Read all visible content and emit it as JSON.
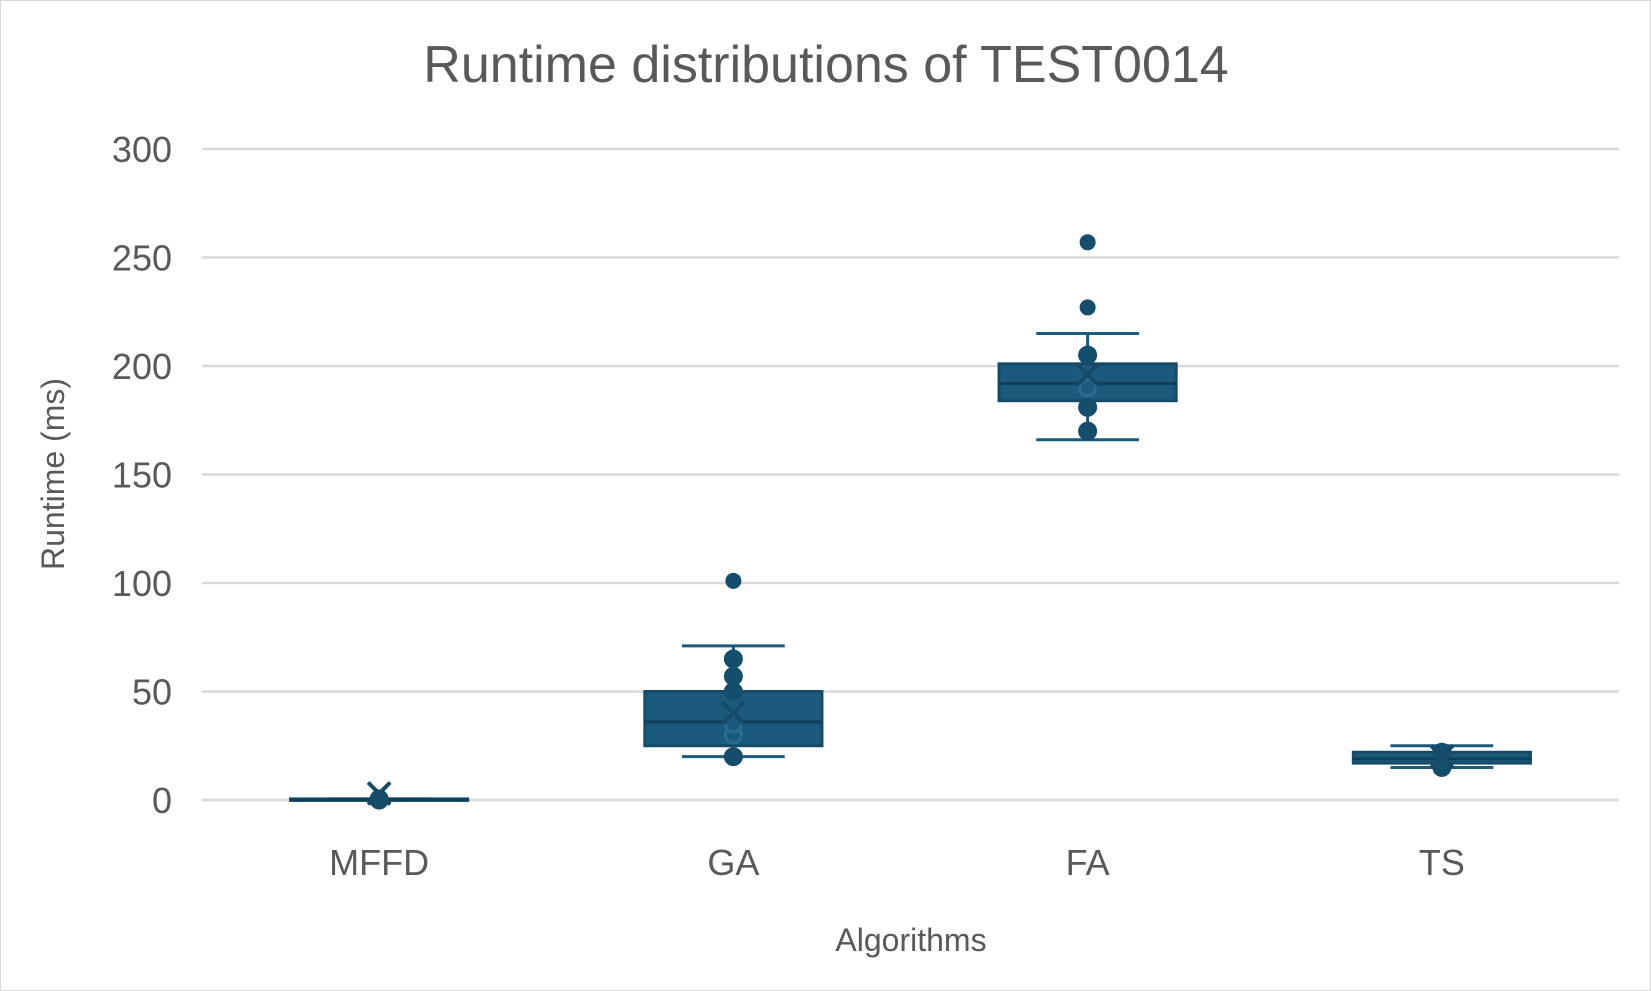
{
  "chart_data": {
    "type": "box",
    "title": "Runtime distributions of TEST0014",
    "xlabel": "Algorithms",
    "ylabel": "Runtime (ms)",
    "ylim": [
      0,
      300
    ],
    "yticks": [
      0,
      50,
      100,
      150,
      200,
      250,
      300
    ],
    "grid": true,
    "legend": "none",
    "color": "#1b5a7c",
    "categories": [
      "MFFD",
      "GA",
      "FA",
      "TS"
    ],
    "boxes": [
      {
        "category": "MFFD",
        "whisker_low": 0,
        "q1": 0,
        "median": 0,
        "q3": 0.5,
        "whisker_high": 0.5,
        "mean": 3,
        "points": [
          0,
          0.5
        ],
        "outliers": []
      },
      {
        "category": "GA",
        "whisker_low": 20,
        "q1": 25,
        "median": 36,
        "q3": 50,
        "whisker_high": 71,
        "mean": 40,
        "points": [
          20,
          30,
          35,
          50,
          57,
          65
        ],
        "outliers": [
          101
        ]
      },
      {
        "category": "FA",
        "whisker_low": 166,
        "q1": 184,
        "median": 192,
        "q3": 201,
        "whisker_high": 215,
        "mean": 196,
        "points": [
          170,
          181,
          190,
          205
        ],
        "outliers": [
          227,
          257
        ]
      },
      {
        "category": "TS",
        "whisker_low": 15,
        "q1": 17,
        "median": 19,
        "q3": 22,
        "whisker_high": 25,
        "mean": 20,
        "points": [
          15,
          22
        ],
        "outliers": []
      }
    ]
  }
}
